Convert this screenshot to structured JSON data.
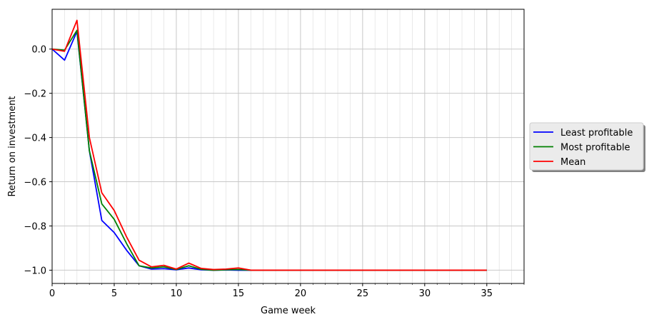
{
  "chart_data": {
    "type": "line",
    "title": "",
    "xlabel": "Game week",
    "ylabel": "Return on investment",
    "xlim": [
      0,
      38
    ],
    "ylim": [
      -1.06,
      0.18
    ],
    "xticks": [
      0,
      5,
      10,
      15,
      20,
      25,
      30,
      35
    ],
    "yticks": [
      0.0,
      -0.2,
      -0.4,
      -0.6,
      -0.8,
      -1.0
    ],
    "ytick_labels": [
      "0.0",
      "−0.2",
      "−0.4",
      "−0.6",
      "−0.8",
      "−1.0"
    ],
    "grid": true,
    "minor_grid": true,
    "legend_position": "outside-right",
    "x": [
      0,
      1,
      2,
      3,
      4,
      5,
      6,
      7,
      8,
      9,
      10,
      11,
      12,
      13,
      14,
      15,
      16,
      17,
      18,
      19,
      20,
      21,
      22,
      23,
      24,
      25,
      26,
      27,
      28,
      29,
      30,
      31,
      32,
      33,
      34,
      35
    ],
    "series": [
      {
        "name": "Least profitable",
        "color": "#0000ff",
        "values": [
          0.0,
          -0.05,
          0.08,
          -0.46,
          -0.775,
          -0.83,
          -0.91,
          -0.98,
          -0.995,
          -0.993,
          -0.998,
          -0.99,
          -0.998,
          -1.0,
          -0.999,
          -1.0,
          -1.0,
          -1.0,
          -1.0,
          -1.0,
          -1.0,
          -1.0,
          -1.0,
          -1.0,
          -1.0,
          -1.0,
          -1.0,
          -1.0,
          -1.0,
          -1.0,
          -1.0,
          -1.0,
          -1.0,
          -1.0,
          -1.0,
          -1.0
        ]
      },
      {
        "name": "Most profitable",
        "color": "#008000",
        "values": [
          0.0,
          -0.005,
          0.085,
          -0.46,
          -0.7,
          -0.77,
          -0.88,
          -0.98,
          -0.99,
          -0.985,
          -0.997,
          -0.98,
          -0.996,
          -1.0,
          -0.998,
          -0.997,
          -1.0,
          -1.0,
          -1.0,
          -1.0,
          -1.0,
          -1.0,
          -1.0,
          -1.0,
          -1.0,
          -1.0,
          -1.0,
          -1.0,
          -1.0,
          -1.0,
          -1.0,
          -1.0,
          -1.0,
          -1.0,
          -1.0,
          -1.0
        ]
      },
      {
        "name": "Mean",
        "color": "#ff0000",
        "values": [
          0.0,
          -0.01,
          0.13,
          -0.4,
          -0.65,
          -0.73,
          -0.85,
          -0.955,
          -0.985,
          -0.978,
          -0.995,
          -0.968,
          -0.992,
          -0.997,
          -0.995,
          -0.99,
          -1.0,
          -1.0,
          -1.0,
          -1.0,
          -1.0,
          -1.0,
          -1.0,
          -1.0,
          -1.0,
          -1.0,
          -1.0,
          -1.0,
          -1.0,
          -1.0,
          -1.0,
          -1.0,
          -1.0,
          -1.0,
          -1.0,
          -1.0
        ]
      }
    ]
  }
}
